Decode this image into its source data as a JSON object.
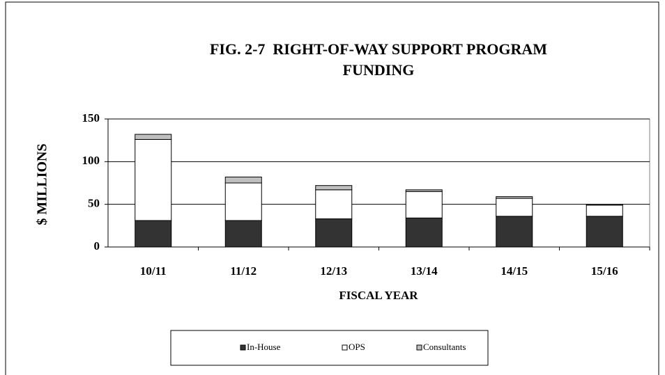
{
  "chart_data": {
    "type": "stacked_bar",
    "title": [
      "FIG. 2-7  RIGHT-OF-WAY SUPPORT PROGRAM",
      "FUNDING"
    ],
    "x_label": "FISCAL YEAR",
    "y_label": "$ MILLIONS",
    "categories": [
      "10/11",
      "11/12",
      "12/13",
      "13/14",
      "14/15",
      "15/16"
    ],
    "series": [
      {
        "name": "In-House",
        "color": "#333333",
        "values": [
          31,
          31,
          33,
          34,
          36,
          36
        ]
      },
      {
        "name": "OPS",
        "color": "#ffffff",
        "values": [
          95,
          44,
          34,
          31,
          21,
          13
        ]
      },
      {
        "name": "Consultants",
        "color": "#bfbfbf",
        "values": [
          6,
          7,
          5,
          2,
          2,
          1
        ]
      }
    ],
    "ylim": [
      0,
      150
    ],
    "yticks": [
      0,
      50,
      100,
      150
    ],
    "grid": true,
    "legend": "bottom"
  }
}
